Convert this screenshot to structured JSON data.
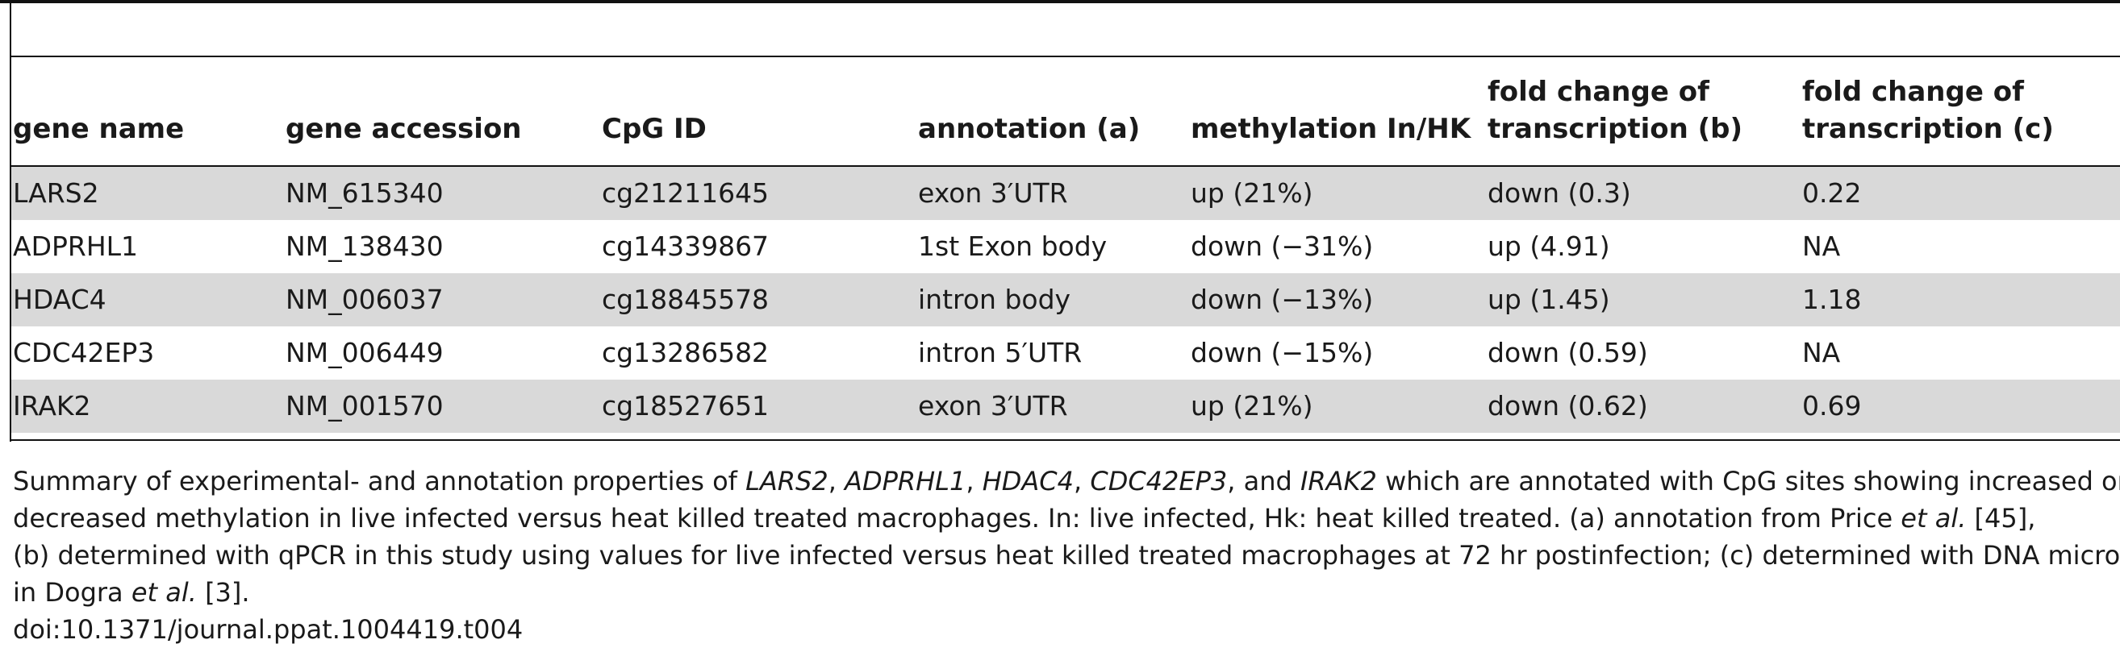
{
  "table": {
    "headers": {
      "gene_name": "gene name",
      "gene_accession": "gene accession",
      "cpg_id": "CpG ID",
      "annotation": "annotation (a)",
      "methylation": "methylation In/HK",
      "fold_b_line1": "fold change of",
      "fold_b_line2": "transcription (b)",
      "fold_c_line1": "fold change of",
      "fold_c_line2": "transcription (c)"
    },
    "rows": [
      {
        "gene_name": "LARS2",
        "gene_accession": "NM_615340",
        "cpg_id": "cg21211645",
        "annotation": "exon 3′UTR",
        "methylation": "up (21%)",
        "fold_b": "down (0.3)",
        "fold_c": "0.22"
      },
      {
        "gene_name": "ADPRHL1",
        "gene_accession": "NM_138430",
        "cpg_id": "cg14339867",
        "annotation": "1st Exon body",
        "methylation": "down (−31%)",
        "fold_b": "up (4.91)",
        "fold_c": "NA"
      },
      {
        "gene_name": "HDAC4",
        "gene_accession": "NM_006037",
        "cpg_id": "cg18845578",
        "annotation": "intron body",
        "methylation": "down (−13%)",
        "fold_b": "up (1.45)",
        "fold_c": "1.18"
      },
      {
        "gene_name": "CDC42EP3",
        "gene_accession": "NM_006449",
        "cpg_id": "cg13286582",
        "annotation": "intron 5′UTR",
        "methylation": "down (−15%)",
        "fold_b": "down (0.59)",
        "fold_c": "NA"
      },
      {
        "gene_name": "IRAK2",
        "gene_accession": "NM_001570",
        "cpg_id": "cg18527651",
        "annotation": "exon 3′UTR",
        "methylation": "up (21%)",
        "fold_b": "down (0.62)",
        "fold_c": "0.69"
      }
    ]
  },
  "caption": {
    "l1_a": "Summary of experimental- and annotation properties of ",
    "l1_g1": "LARS2",
    "l1_s1": ", ",
    "l1_g2": "ADPRHL1",
    "l1_s2": ", ",
    "l1_g3": "HDAC4",
    "l1_s3": ", ",
    "l1_g4": "CDC42EP3",
    "l1_s4": ", and ",
    "l1_g5": "IRAK2",
    "l1_b": " which are annotated with CpG sites showing increased or",
    "l2": "decreased methylation in live infected versus heat killed treated macrophages. In: live infected, Hk: heat killed treated. (a) annotation from Price ",
    "l2_etal": "et al.",
    "l2_ref": " [45],",
    "l3": "(b) determined with qPCR in this study using values for live infected versus heat killed treated macrophages at 72 hr postinfection; (c) determined with DNA microarrays",
    "l4_a": "in Dogra ",
    "l4_etal": "et al.",
    "l4_ref": " [3].",
    "doi": "doi:10.1371/journal.ppat.1004419.t004"
  }
}
